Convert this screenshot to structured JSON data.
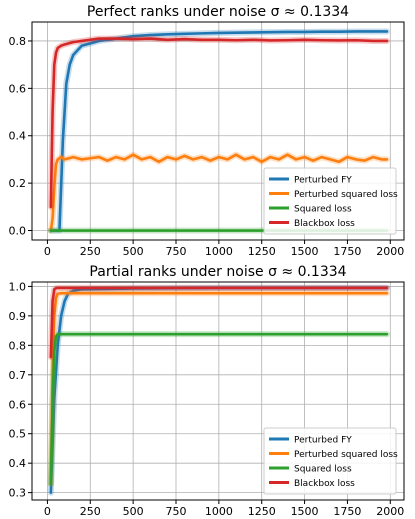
{
  "chart_data": [
    {
      "type": "line",
      "title": "Perfect ranks under noise σ ≈ 0.1334",
      "xlabel": "",
      "ylabel": "",
      "xlim": [
        -90,
        2080
      ],
      "ylim": [
        -0.04,
        0.88
      ],
      "xticks": [
        0,
        250,
        500,
        750,
        1000,
        1250,
        1500,
        1750,
        2000
      ],
      "yticks": [
        0.0,
        0.2,
        0.4,
        0.6,
        0.8
      ],
      "ytick_labels": [
        "0.0",
        "0.2",
        "0.4",
        "0.6",
        "0.8"
      ],
      "grid": true,
      "legend_position": "bottom-right",
      "series": [
        {
          "name": "Perturbed FY",
          "color": "#1f77b4",
          "x": [
            20,
            50,
            70,
            90,
            110,
            130,
            150,
            175,
            200,
            250,
            300,
            400,
            500,
            600,
            700,
            800,
            900,
            1000,
            1100,
            1200,
            1300,
            1400,
            1500,
            1600,
            1700,
            1800,
            1900,
            1980
          ],
          "y": [
            0.0,
            0.0,
            0.0,
            0.38,
            0.62,
            0.7,
            0.74,
            0.76,
            0.78,
            0.79,
            0.8,
            0.81,
            0.82,
            0.825,
            0.828,
            0.83,
            0.832,
            0.834,
            0.835,
            0.836,
            0.837,
            0.838,
            0.838,
            0.839,
            0.839,
            0.84,
            0.84,
            0.84
          ]
        },
        {
          "name": "Perturbed squared loss",
          "color": "#ff7f0e",
          "x": [
            20,
            30,
            40,
            50,
            60,
            80,
            100,
            150,
            200,
            250,
            300,
            350,
            400,
            450,
            500,
            550,
            600,
            650,
            700,
            750,
            800,
            850,
            900,
            950,
            1000,
            1050,
            1100,
            1150,
            1200,
            1250,
            1300,
            1350,
            1400,
            1450,
            1500,
            1550,
            1600,
            1650,
            1700,
            1750,
            1800,
            1850,
            1900,
            1950,
            1980
          ],
          "y": [
            0.0,
            0.05,
            0.18,
            0.28,
            0.3,
            0.31,
            0.3,
            0.31,
            0.3,
            0.305,
            0.31,
            0.295,
            0.31,
            0.3,
            0.32,
            0.3,
            0.31,
            0.29,
            0.31,
            0.3,
            0.315,
            0.3,
            0.31,
            0.295,
            0.31,
            0.3,
            0.32,
            0.3,
            0.31,
            0.29,
            0.31,
            0.3,
            0.32,
            0.3,
            0.31,
            0.295,
            0.31,
            0.3,
            0.29,
            0.31,
            0.3,
            0.295,
            0.31,
            0.3,
            0.3
          ]
        },
        {
          "name": "Squared loss",
          "color": "#2ca02c",
          "x": [
            20,
            500,
            1000,
            1500,
            1980
          ],
          "y": [
            0.0,
            0.0,
            0.0,
            0.0,
            0.0
          ]
        },
        {
          "name": "Blackbox loss",
          "color": "#d62728",
          "x": [
            20,
            30,
            40,
            50,
            60,
            80,
            100,
            150,
            200,
            250,
            300,
            400,
            500,
            600,
            700,
            800,
            900,
            1000,
            1100,
            1200,
            1300,
            1400,
            1500,
            1600,
            1700,
            1800,
            1900,
            1980
          ],
          "y": [
            0.1,
            0.5,
            0.7,
            0.75,
            0.77,
            0.78,
            0.785,
            0.795,
            0.8,
            0.805,
            0.81,
            0.81,
            0.808,
            0.81,
            0.805,
            0.808,
            0.805,
            0.805,
            0.803,
            0.805,
            0.802,
            0.803,
            0.805,
            0.803,
            0.802,
            0.803,
            0.8,
            0.8
          ]
        }
      ]
    },
    {
      "type": "line",
      "title": "Partial ranks under noise σ ≈ 0.1334",
      "xlabel": "",
      "ylabel": "",
      "xlim": [
        -90,
        2080
      ],
      "ylim": [
        0.275,
        1.015
      ],
      "xticks": [
        0,
        250,
        500,
        750,
        1000,
        1250,
        1500,
        1750,
        2000
      ],
      "yticks": [
        0.3,
        0.4,
        0.5,
        0.6,
        0.7,
        0.8,
        0.9,
        1.0
      ],
      "ytick_labels": [
        "0.3",
        "0.4",
        "0.5",
        "0.6",
        "0.7",
        "0.8",
        "0.9",
        "1.0"
      ],
      "grid": true,
      "legend_position": "bottom-right",
      "series": [
        {
          "name": "Perturbed FY",
          "color": "#1f77b4",
          "x": [
            20,
            40,
            60,
            80,
            100,
            120,
            150,
            200,
            500,
            1000,
            1500,
            1980
          ],
          "y": [
            0.3,
            0.62,
            0.8,
            0.9,
            0.95,
            0.975,
            0.985,
            0.99,
            0.993,
            0.995,
            0.995,
            0.995
          ]
        },
        {
          "name": "Perturbed squared loss",
          "color": "#ff7f0e",
          "x": [
            20,
            30,
            40,
            50,
            60,
            80,
            100,
            500,
            1000,
            1500,
            1980
          ],
          "y": [
            0.33,
            0.7,
            0.9,
            0.96,
            0.975,
            0.977,
            0.977,
            0.977,
            0.977,
            0.977,
            0.977
          ]
        },
        {
          "name": "Squared loss",
          "color": "#2ca02c",
          "x": [
            20,
            30,
            40,
            50,
            60,
            80,
            100,
            500,
            1000,
            1500,
            1980
          ],
          "y": [
            0.33,
            0.6,
            0.78,
            0.83,
            0.837,
            0.838,
            0.838,
            0.838,
            0.838,
            0.838,
            0.838
          ]
        },
        {
          "name": "Blackbox loss",
          "color": "#d62728",
          "x": [
            20,
            30,
            40,
            50,
            60,
            80,
            100,
            500,
            1000,
            1500,
            1980
          ],
          "y": [
            0.76,
            0.95,
            0.99,
            0.994,
            0.995,
            0.995,
            0.995,
            0.995,
            0.995,
            0.995,
            0.995
          ]
        }
      ]
    }
  ]
}
